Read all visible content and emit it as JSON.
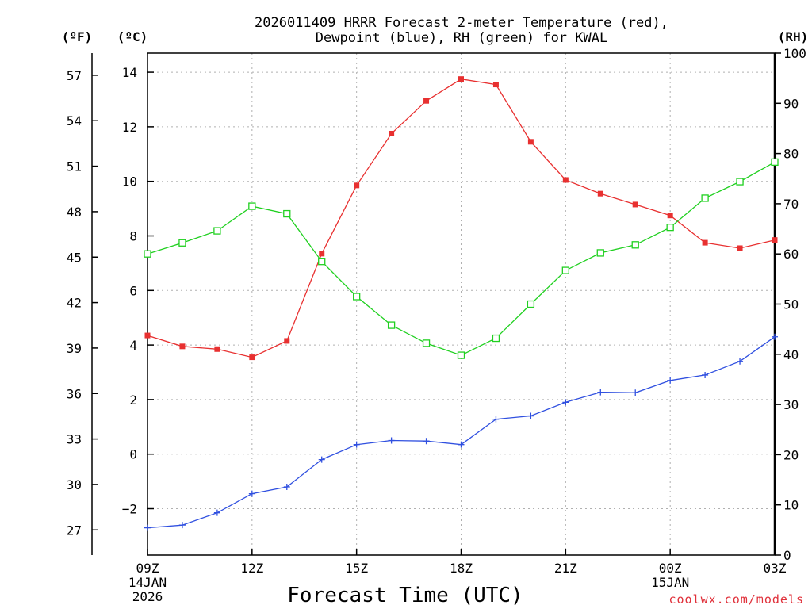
{
  "chart_data": {
    "type": "line",
    "title_line1": "2026011409 HRRR Forecast 2-meter Temperature (red),",
    "title_line2": "Dewpoint (blue), RH (green) for KWAL",
    "xlabel": "Forecast Time (UTC)",
    "ylabel_f": "(ºF)",
    "ylabel_c": "(ºC)",
    "ylabel_rh": "(RH)",
    "credit": "coolwx.com/models",
    "x_hours": [
      0,
      1,
      2,
      3,
      4,
      5,
      6,
      7,
      8,
      9,
      10,
      11,
      12,
      13,
      14,
      15,
      16,
      17,
      18
    ],
    "x_ticks": [
      {
        "hour": 0,
        "label": "09Z",
        "sub1": "14JAN",
        "sub2": "2026"
      },
      {
        "hour": 3,
        "label": "12Z",
        "sub1": "",
        "sub2": ""
      },
      {
        "hour": 6,
        "label": "15Z",
        "sub1": "",
        "sub2": ""
      },
      {
        "hour": 9,
        "label": "18Z",
        "sub1": "",
        "sub2": ""
      },
      {
        "hour": 12,
        "label": "21Z",
        "sub1": "",
        "sub2": ""
      },
      {
        "hour": 15,
        "label": "00Z",
        "sub1": "15JAN",
        "sub2": ""
      },
      {
        "hour": 18,
        "label": "03Z",
        "sub1": "",
        "sub2": ""
      }
    ],
    "celsius_axis": {
      "range": [
        -3.7,
        14.7
      ],
      "ticks": [
        -2,
        0,
        2,
        4,
        6,
        8,
        10,
        12,
        14
      ],
      "tick_labels": [
        "−2",
        "0",
        "2",
        "4",
        "6",
        "8",
        "10",
        "12",
        "14"
      ]
    },
    "fahrenheit_ticks": [
      27,
      30,
      33,
      36,
      39,
      42,
      45,
      48,
      51,
      54,
      57
    ],
    "rh_axis": {
      "range": [
        0,
        100
      ],
      "ticks": [
        0,
        10,
        20,
        30,
        40,
        50,
        60,
        70,
        80,
        90,
        100
      ]
    },
    "series": [
      {
        "name": "Temperature",
        "unit": "C",
        "axis": "celsius",
        "color": "#e83030",
        "marker": "filled-square",
        "values": [
          4.35,
          3.95,
          3.85,
          3.55,
          4.15,
          7.35,
          9.85,
          11.75,
          12.95,
          13.75,
          13.55,
          11.45,
          10.05,
          9.55,
          9.15,
          8.75,
          7.75,
          7.55,
          7.85
        ]
      },
      {
        "name": "Dewpoint",
        "unit": "C",
        "axis": "celsius",
        "color": "#3050e0",
        "marker": "plus",
        "values": [
          -2.7,
          -2.6,
          -2.15,
          -1.45,
          -1.2,
          -0.2,
          0.35,
          0.5,
          0.48,
          0.35,
          1.28,
          1.4,
          1.9,
          2.27,
          2.25,
          2.7,
          2.9,
          3.4,
          4.3
        ]
      },
      {
        "name": "RH",
        "unit": "%",
        "axis": "rh",
        "color": "#20d020",
        "marker": "open-square",
        "values": [
          60,
          62.2,
          64.6,
          69.5,
          68,
          58.5,
          51.5,
          45.8,
          42.2,
          39.8,
          43.2,
          50,
          56.7,
          60.2,
          61.8,
          65.3,
          71.1,
          74.4,
          78.3
        ]
      }
    ]
  }
}
